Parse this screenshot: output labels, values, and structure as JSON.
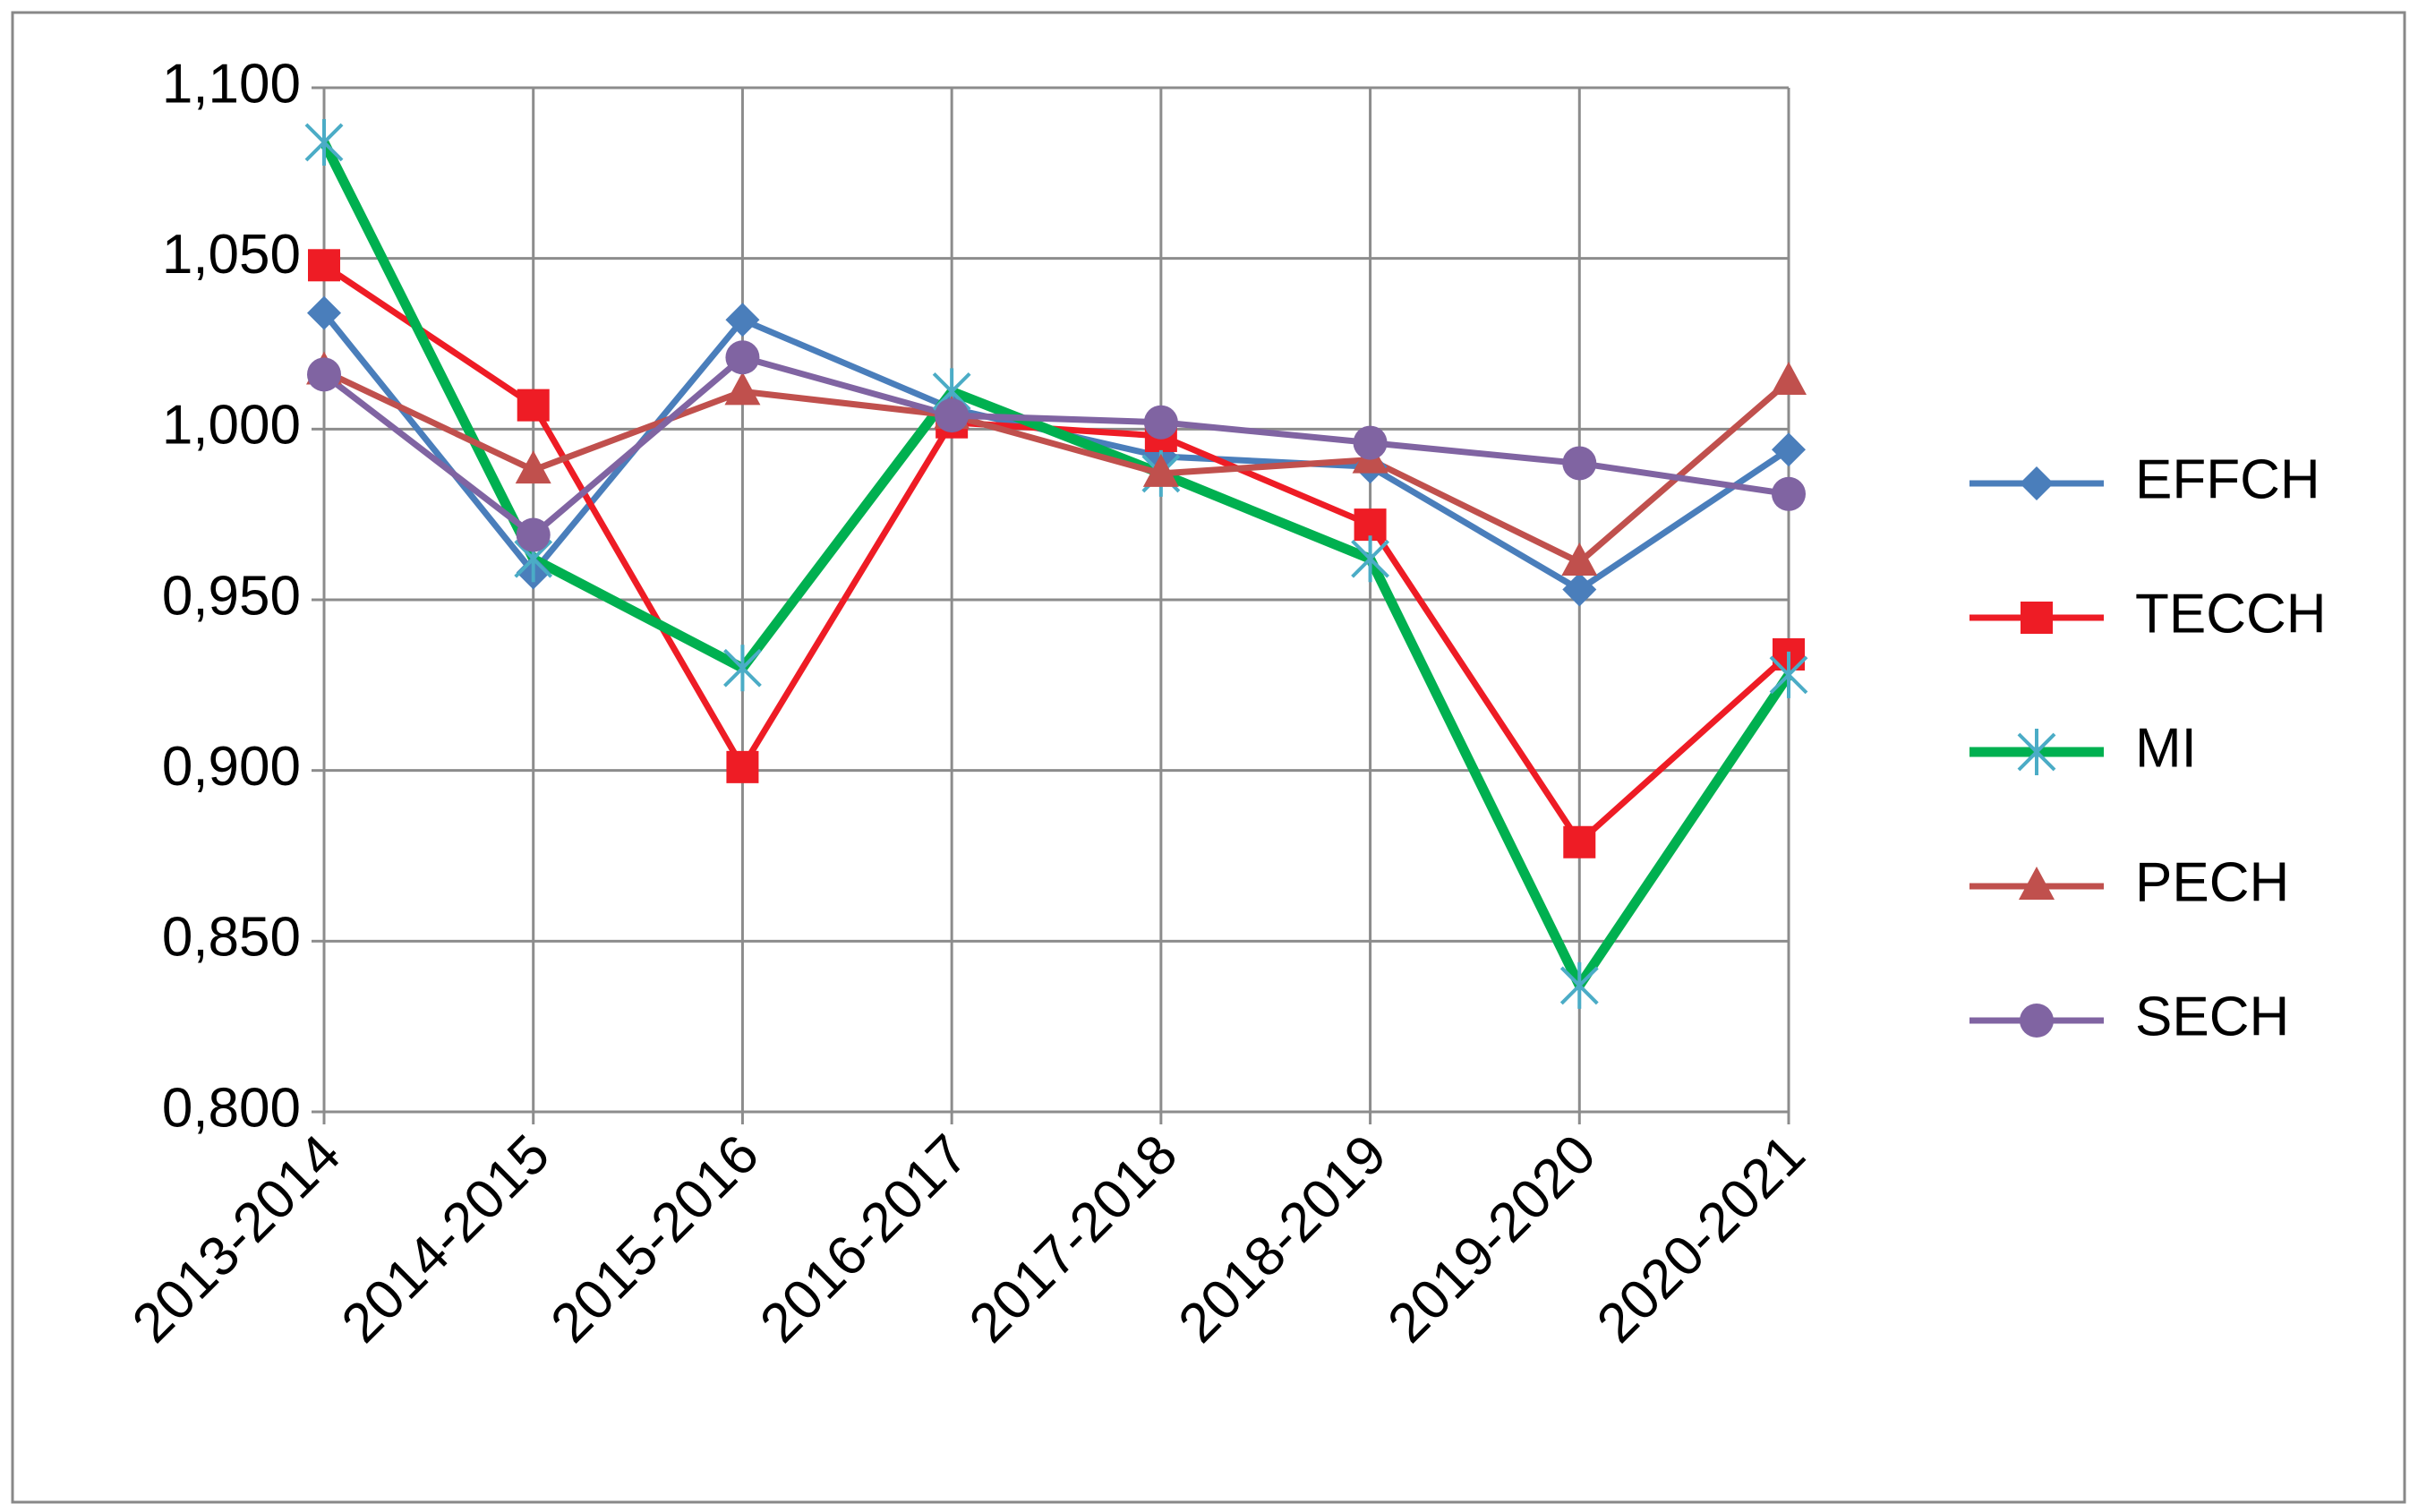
{
  "chart_data": {
    "type": "line",
    "categories": [
      "2013-2014",
      "2014-2015",
      "2015-2016",
      "2016-2017",
      "2017-2018",
      "2018-2019",
      "2019-2020",
      "2020-2021"
    ],
    "series": [
      {
        "name": "EFFCH",
        "color": "#4a7ebb",
        "marker": "diamond",
        "line_width": 7,
        "values": [
          1.034,
          0.958,
          1.032,
          1.006,
          0.992,
          0.989,
          0.953,
          0.994
        ]
      },
      {
        "name": "TECCH",
        "color": "#ee1c25",
        "marker": "square",
        "line_width": 7,
        "values": [
          1.048,
          1.007,
          0.901,
          1.002,
          0.998,
          0.972,
          0.879,
          0.934
        ]
      },
      {
        "name": "MI",
        "color": "#00b050",
        "marker_color": "#4bacc6",
        "marker": "star",
        "line_width": 11,
        "values": [
          1.084,
          0.962,
          0.93,
          1.011,
          0.987,
          0.962,
          0.837,
          0.928
        ]
      },
      {
        "name": "PECH",
        "color": "#c0504d",
        "marker": "triangle",
        "line_width": 7,
        "values": [
          1.017,
          0.988,
          1.011,
          1.004,
          0.987,
          0.991,
          0.961,
          1.014
        ]
      },
      {
        "name": "SECH",
        "color": "#8064a2",
        "marker": "circle",
        "line_width": 7,
        "values": [
          1.016,
          0.969,
          1.021,
          1.004,
          1.002,
          0.996,
          0.99,
          0.981
        ]
      }
    ],
    "ylim": [
      0.8,
      1.1
    ],
    "yticks": [
      {
        "value": 0.8,
        "label": "0,800"
      },
      {
        "value": 0.85,
        "label": "0,850"
      },
      {
        "value": 0.9,
        "label": "0,900"
      },
      {
        "value": 0.95,
        "label": "0,950"
      },
      {
        "value": 1.0,
        "label": "1,000"
      },
      {
        "value": 1.05,
        "label": "1,050"
      },
      {
        "value": 1.1,
        "label": "1,100"
      }
    ],
    "grid": true,
    "legend": "right"
  }
}
